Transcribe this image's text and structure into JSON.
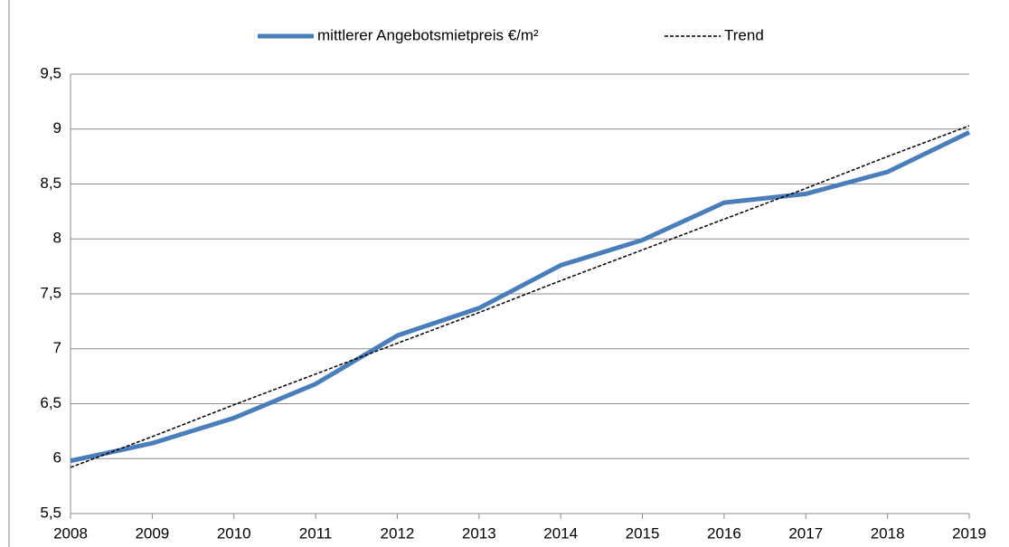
{
  "chart_data": {
    "type": "line",
    "x": [
      2008,
      2009,
      2010,
      2011,
      2012,
      2013,
      2014,
      2015,
      2016,
      2017,
      2018,
      2019
    ],
    "series": [
      {
        "name": "mittlerer Angebotsmietpreis €/m²",
        "color": "#4a7ebb",
        "values": [
          5.98,
          6.14,
          6.37,
          6.68,
          7.12,
          7.37,
          7.76,
          7.99,
          8.33,
          8.41,
          8.61,
          8.97
        ]
      },
      {
        "name": "Trend",
        "color": "#000000",
        "dashed": true,
        "values": [
          5.92,
          6.2,
          6.49,
          6.77,
          7.05,
          7.33,
          7.62,
          7.9,
          8.18,
          8.46,
          8.75,
          9.03
        ]
      }
    ],
    "xlim": [
      2008,
      2019
    ],
    "xticks": [
      2008,
      2009,
      2010,
      2011,
      2012,
      2013,
      2014,
      2015,
      2016,
      2017,
      2018,
      2019
    ],
    "ylim": [
      5.5,
      9.5
    ],
    "yticks": [
      {
        "value": 5.5,
        "label": "5,5"
      },
      6,
      {
        "value": 6.5,
        "label": "6,5"
      },
      7,
      {
        "value": 7.5,
        "label": "7,5"
      },
      8,
      {
        "value": 8.5,
        "label": "8,5"
      },
      9,
      {
        "value": 9.5,
        "label": "9,5"
      }
    ],
    "grid": true,
    "legend": "top"
  }
}
